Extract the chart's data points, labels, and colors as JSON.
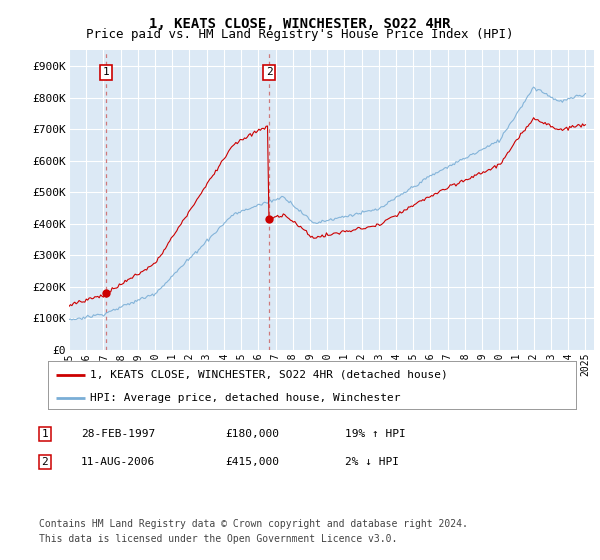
{
  "title": "1, KEATS CLOSE, WINCHESTER, SO22 4HR",
  "subtitle": "Price paid vs. HM Land Registry's House Price Index (HPI)",
  "ylim": [
    0,
    950000
  ],
  "yticks": [
    0,
    100000,
    200000,
    300000,
    400000,
    500000,
    600000,
    700000,
    800000,
    900000
  ],
  "ytick_labels": [
    "£0",
    "£100K",
    "£200K",
    "£300K",
    "£400K",
    "£500K",
    "£600K",
    "£700K",
    "£800K",
    "£900K"
  ],
  "bg_color": "#dce9f5",
  "grid_color": "#ffffff",
  "red_line_color": "#cc0000",
  "blue_line_color": "#7aaed6",
  "marker1_year": 1997.15,
  "marker1_price": 180000,
  "marker2_year": 2006.62,
  "marker2_price": 415000,
  "xmin": 1995,
  "xmax": 2025.5,
  "legend_label_red": "1, KEATS CLOSE, WINCHESTER, SO22 4HR (detached house)",
  "legend_label_blue": "HPI: Average price, detached house, Winchester",
  "table_row1_num": "1",
  "table_row1_date": "28-FEB-1997",
  "table_row1_price": "£180,000",
  "table_row1_hpi": "19% ↑ HPI",
  "table_row2_num": "2",
  "table_row2_date": "11-AUG-2006",
  "table_row2_price": "£415,000",
  "table_row2_hpi": "2% ↓ HPI",
  "footer_line1": "Contains HM Land Registry data © Crown copyright and database right 2024.",
  "footer_line2": "This data is licensed under the Open Government Licence v3.0.",
  "title_fontsize": 10,
  "subtitle_fontsize": 9,
  "axis_fontsize": 8,
  "legend_fontsize": 8,
  "table_fontsize": 8,
  "footer_fontsize": 7
}
